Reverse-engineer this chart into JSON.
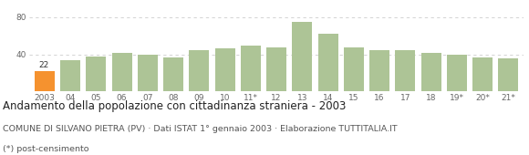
{
  "categories": [
    "2003",
    "04",
    "05",
    "06",
    "07",
    "08",
    "09",
    "10",
    "11*",
    "12",
    "13",
    "14",
    "15",
    "16",
    "17",
    "18",
    "19*",
    "20*",
    "21*"
  ],
  "values": [
    22,
    34,
    38,
    41,
    40,
    37,
    44,
    46,
    49,
    47,
    75,
    62,
    47,
    44,
    44,
    41,
    40,
    37,
    36
  ],
  "bar_color_default": "#adc496",
  "bar_color_highlight": "#f5922f",
  "highlight_index": 0,
  "highlight_label": "22",
  "ylim": [
    0,
    90
  ],
  "yticks": [
    0,
    40,
    80
  ],
  "title": "Andamento della popolazione con cittadinanza straniera - 2003",
  "subtitle": "COMUNE DI SILVANO PIETRA (PV) · Dati ISTAT 1° gennaio 2003 · Elaborazione TUTTITALIA.IT",
  "footnote": "(*) post-censimento",
  "background_color": "#ffffff",
  "grid_color": "#cccccc",
  "title_fontsize": 8.5,
  "subtitle_fontsize": 6.8,
  "footnote_fontsize": 6.8,
  "tick_fontsize": 6.5
}
